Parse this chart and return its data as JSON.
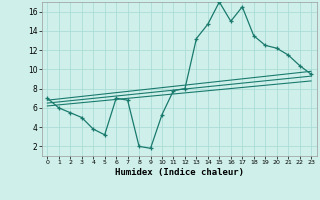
{
  "xlabel": "Humidex (Indice chaleur)",
  "background_color": "#cff0ea",
  "grid_color": "#aaddd6",
  "line_color": "#1a7a6e",
  "xlim": [
    -0.5,
    23.5
  ],
  "ylim": [
    1,
    17
  ],
  "xticks": [
    0,
    1,
    2,
    3,
    4,
    5,
    6,
    7,
    8,
    9,
    10,
    11,
    12,
    13,
    14,
    15,
    16,
    17,
    18,
    19,
    20,
    21,
    22,
    23
  ],
  "yticks": [
    2,
    4,
    6,
    8,
    10,
    12,
    14,
    16
  ],
  "series1_x": [
    0,
    1,
    2,
    3,
    4,
    5,
    6,
    7,
    8,
    9,
    10,
    11,
    12,
    13,
    14,
    15,
    16,
    17,
    18,
    19,
    20,
    21,
    22,
    23
  ],
  "series1_y": [
    7.0,
    6.0,
    5.5,
    5.0,
    3.8,
    3.2,
    7.0,
    6.8,
    2.0,
    1.8,
    5.3,
    7.8,
    8.0,
    13.2,
    14.7,
    17.0,
    15.0,
    16.5,
    13.5,
    12.5,
    12.2,
    11.5,
    10.4,
    9.5
  ],
  "series2_x": [
    0,
    23
  ],
  "series2_y": [
    6.5,
    9.3
  ],
  "series3_x": [
    0,
    23
  ],
  "series3_y": [
    6.2,
    8.8
  ],
  "series4_x": [
    0,
    23
  ],
  "series4_y": [
    6.8,
    9.8
  ]
}
